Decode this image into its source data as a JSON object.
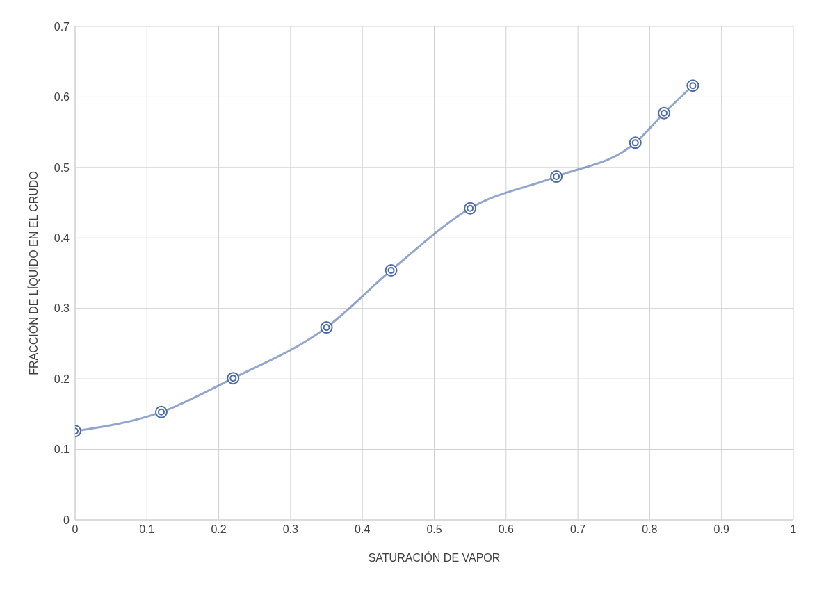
{
  "chart_data": {
    "type": "line",
    "xlabel": "SATURACIÓN DE VAPOR",
    "ylabel": "FRACCIÓN DE LÍQUIDO EN EL CRUDO",
    "x": [
      0,
      0.12,
      0.22,
      0.35,
      0.44,
      0.55,
      0.67,
      0.78,
      0.82,
      0.86
    ],
    "series": [
      {
        "color": "#4a6aa8",
        "values": [
          0.126,
          0.153,
          0.201,
          0.273,
          0.354,
          0.442,
          0.487,
          0.535,
          0.577,
          0.616
        ]
      }
    ],
    "xlim": [
      0,
      1
    ],
    "xticks": [
      0,
      0.1,
      0.2,
      0.3,
      0.4,
      0.5,
      0.6,
      0.7,
      0.8,
      0.9,
      1
    ],
    "ylim": [
      0,
      0.7
    ],
    "yticks": [
      0,
      0.1,
      0.2,
      0.3,
      0.4,
      0.5,
      0.6,
      0.7
    ],
    "grid": true,
    "marker": "circle",
    "line_style": "solid"
  }
}
